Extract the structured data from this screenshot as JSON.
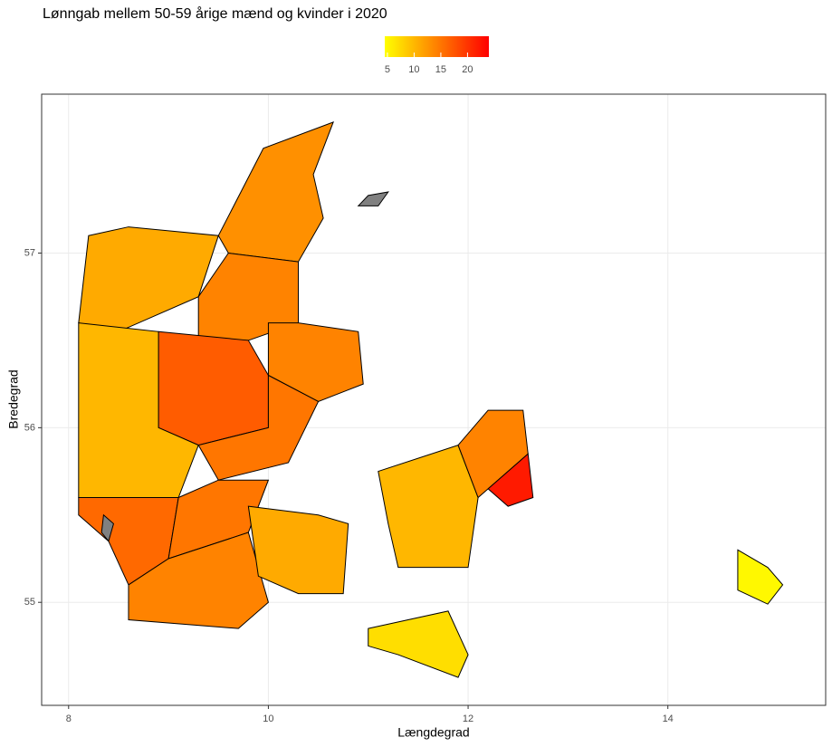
{
  "chart_data": {
    "type": "choropleth",
    "title": "Lønngab mellem 50-59 årige mænd og kvinder i 2020",
    "x_label": "Længdegrad",
    "y_label": "Bredegrad",
    "xlim": [
      7.73,
      15.58
    ],
    "ylim": [
      54.41,
      57.91
    ],
    "xticks": [
      8,
      10,
      12,
      14
    ],
    "yticks": [
      55,
      56,
      57
    ],
    "grid": true,
    "color_low": "#ffff00",
    "color_high": "#ff0000",
    "na_color": "#808080",
    "colorlim": [
      4.5,
      24
    ],
    "legend_ticks": [
      5,
      10,
      15,
      20
    ],
    "regions": [
      {
        "value": 13,
        "lonlat": [
          [
            9.5,
            57.1
          ],
          [
            9.95,
            57.6
          ],
          [
            10.65,
            57.75
          ],
          [
            10.45,
            57.45
          ],
          [
            10.55,
            57.2
          ],
          [
            10.3,
            56.95
          ],
          [
            9.6,
            57.0
          ]
        ]
      },
      {
        "value": 11,
        "lonlat": [
          [
            8.2,
            57.1
          ],
          [
            8.6,
            57.15
          ],
          [
            9.5,
            57.1
          ],
          [
            9.3,
            56.75
          ],
          [
            8.5,
            56.55
          ],
          [
            8.1,
            56.6
          ]
        ]
      },
      {
        "value": 14,
        "lonlat": [
          [
            9.3,
            56.75
          ],
          [
            9.6,
            57.0
          ],
          [
            10.3,
            56.95
          ],
          [
            10.3,
            56.6
          ],
          [
            9.8,
            56.5
          ],
          [
            9.3,
            56.5
          ]
        ]
      },
      {
        "value": 14,
        "lonlat": [
          [
            10.0,
            56.6
          ],
          [
            10.3,
            56.6
          ],
          [
            10.9,
            56.55
          ],
          [
            10.95,
            56.25
          ],
          [
            10.5,
            56.15
          ],
          [
            10.0,
            56.3
          ]
        ]
      },
      {
        "value": 17,
        "lonlat": [
          [
            8.9,
            56.55
          ],
          [
            9.8,
            56.5
          ],
          [
            10.0,
            56.3
          ],
          [
            10.0,
            56.0
          ],
          [
            9.3,
            55.9
          ],
          [
            8.9,
            56.0
          ]
        ]
      },
      {
        "value": 15,
        "lonlat": [
          [
            10.0,
            56.3
          ],
          [
            10.5,
            56.15
          ],
          [
            10.2,
            55.8
          ],
          [
            9.5,
            55.7
          ],
          [
            9.3,
            55.9
          ],
          [
            10.0,
            56.0
          ]
        ]
      },
      {
        "value": 10,
        "lonlat": [
          [
            8.1,
            56.6
          ],
          [
            8.9,
            56.55
          ],
          [
            8.9,
            56.0
          ],
          [
            9.3,
            55.9
          ],
          [
            9.1,
            55.6
          ],
          [
            8.1,
            55.6
          ]
        ]
      },
      {
        "value": 16,
        "lonlat": [
          [
            8.1,
            55.6
          ],
          [
            9.1,
            55.6
          ],
          [
            9.0,
            55.25
          ],
          [
            8.6,
            55.1
          ],
          [
            8.4,
            55.35
          ],
          [
            8.1,
            55.5
          ]
        ]
      },
      {
        "value": 15,
        "lonlat": [
          [
            9.1,
            55.6
          ],
          [
            9.5,
            55.7
          ],
          [
            10.0,
            55.7
          ],
          [
            9.8,
            55.4
          ],
          [
            9.0,
            55.25
          ]
        ]
      },
      {
        "value": 14,
        "lonlat": [
          [
            8.6,
            55.1
          ],
          [
            9.0,
            55.25
          ],
          [
            9.8,
            55.4
          ],
          [
            10.0,
            55.0
          ],
          [
            9.7,
            54.85
          ],
          [
            8.6,
            54.9
          ]
        ]
      },
      {
        "value": 11,
        "lonlat": [
          [
            9.8,
            55.55
          ],
          [
            10.5,
            55.5
          ],
          [
            10.8,
            55.45
          ],
          [
            10.75,
            55.05
          ],
          [
            10.3,
            55.05
          ],
          [
            9.9,
            55.15
          ]
        ]
      },
      {
        "value": 10,
        "lonlat": [
          [
            11.1,
            55.75
          ],
          [
            11.9,
            55.9
          ],
          [
            12.1,
            55.6
          ],
          [
            12.0,
            55.2
          ],
          [
            11.3,
            55.2
          ],
          [
            11.2,
            55.45
          ]
        ]
      },
      {
        "value": 14,
        "lonlat": [
          [
            11.9,
            55.9
          ],
          [
            12.2,
            56.1
          ],
          [
            12.55,
            56.1
          ],
          [
            12.6,
            55.85
          ],
          [
            12.2,
            55.65
          ],
          [
            12.1,
            55.6
          ]
        ]
      },
      {
        "value": 22,
        "lonlat": [
          [
            12.2,
            55.65
          ],
          [
            12.6,
            55.85
          ],
          [
            12.65,
            55.6
          ],
          [
            12.4,
            55.55
          ]
        ]
      },
      {
        "value": 7,
        "lonlat": [
          [
            11.0,
            54.85
          ],
          [
            11.8,
            54.95
          ],
          [
            12.0,
            54.7
          ],
          [
            11.9,
            54.57
          ],
          [
            11.3,
            54.7
          ],
          [
            11.0,
            54.75
          ]
        ]
      },
      {
        "value": 5,
        "lonlat": [
          [
            14.7,
            55.3
          ],
          [
            15.0,
            55.2
          ],
          [
            15.15,
            55.1
          ],
          [
            15.0,
            54.99
          ],
          [
            14.7,
            55.07
          ]
        ]
      },
      {
        "value": null,
        "lonlat": [
          [
            10.9,
            57.27
          ],
          [
            11.0,
            57.33
          ],
          [
            11.2,
            57.35
          ],
          [
            11.1,
            57.27
          ]
        ]
      },
      {
        "value": null,
        "lonlat": [
          [
            8.35,
            55.5
          ],
          [
            8.45,
            55.45
          ],
          [
            8.4,
            55.35
          ],
          [
            8.33,
            55.4
          ]
        ]
      }
    ]
  }
}
